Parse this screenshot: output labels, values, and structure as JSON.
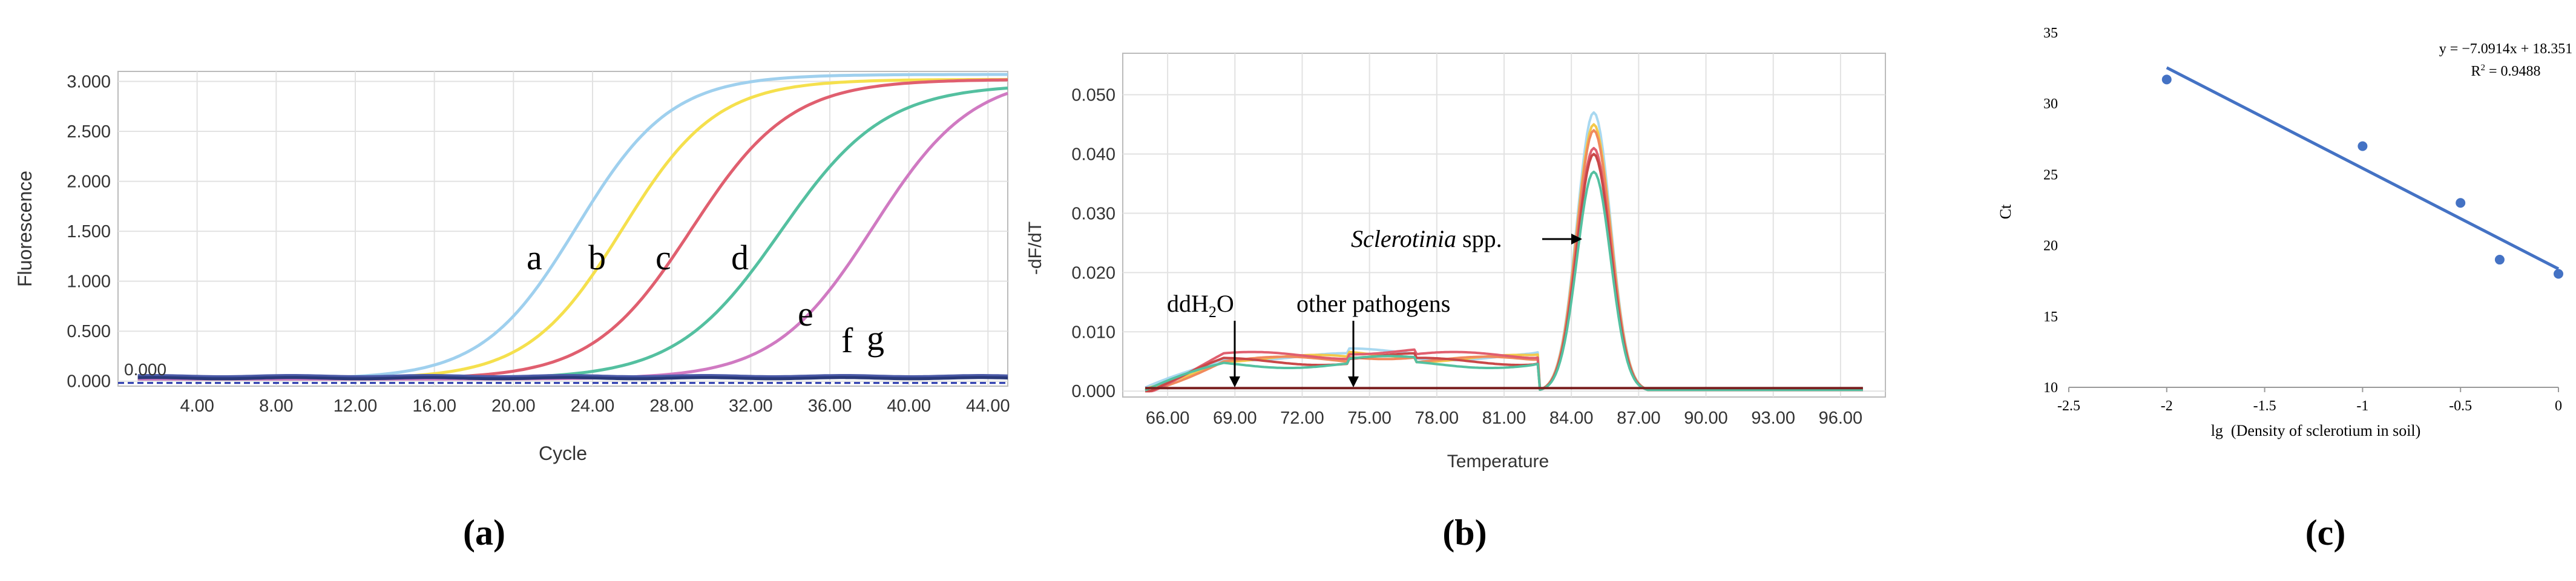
{
  "chart_data": [
    {
      "id": "a",
      "type": "line",
      "panel_label": "(a)",
      "xlabel": "Cycle",
      "ylabel": "Fluorescence",
      "xlim": [
        0,
        45
      ],
      "ylim": [
        -0.05,
        3.1
      ],
      "xticks": [
        4,
        8,
        12,
        16,
        20,
        24,
        28,
        32,
        36,
        40,
        44
      ],
      "xtick_labels": [
        "4.00",
        "8.00",
        "12.00",
        "16.00",
        "20.00",
        "24.00",
        "28.00",
        "32.00",
        "36.00",
        "40.00",
        "44.00"
      ],
      "yticks": [
        0,
        0.5,
        1,
        1.5,
        2,
        2.5,
        3
      ],
      "ytick_labels": [
        "0.000",
        "0.500",
        "1.000",
        "1.500",
        "2.000",
        "2.500",
        "3.000"
      ],
      "threshold_label": "0.000",
      "curve_labels": [
        "a",
        "b",
        "c",
        "d",
        "e",
        "f",
        "g"
      ],
      "series": [
        {
          "name": "a",
          "color": "#9fd0ee",
          "midpoint": 23.2,
          "slope": 0.42,
          "max": 3.05
        },
        {
          "name": "b",
          "color": "#f5e04d",
          "midpoint": 25.5,
          "slope": 0.42,
          "max": 3.0
        },
        {
          "name": "c",
          "color": "#e05f6f",
          "midpoint": 29.0,
          "slope": 0.4,
          "max": 3.0
        },
        {
          "name": "d",
          "color": "#54c0a0",
          "midpoint": 33.5,
          "slope": 0.38,
          "max": 2.95
        },
        {
          "name": "e",
          "color": "#d07ac2",
          "midpoint": 38.2,
          "slope": 0.4,
          "max": 3.05
        },
        {
          "name": "f",
          "color": "#4b5aa8",
          "flat": 0.05
        },
        {
          "name": "g",
          "color": "#2a3a7a",
          "flat": 0.03
        }
      ]
    },
    {
      "id": "b",
      "type": "line",
      "panel_label": "(b)",
      "xlabel": "Temperature",
      "ylabel": "-dF/dT",
      "xlim": [
        64,
        98
      ],
      "ylim": [
        -0.001,
        0.057
      ],
      "xticks": [
        66,
        69,
        72,
        75,
        78,
        81,
        84,
        87,
        90,
        93,
        96
      ],
      "xtick_labels": [
        "66.00",
        "69.00",
        "72.00",
        "75.00",
        "78.00",
        "81.00",
        "84.00",
        "87.00",
        "90.00",
        "93.00",
        "96.00"
      ],
      "yticks": [
        0,
        0.01,
        0.02,
        0.03,
        0.04,
        0.05
      ],
      "ytick_labels": [
        "0.000",
        "0.010",
        "0.020",
        "0.030",
        "0.040",
        "0.050"
      ],
      "annotations": {
        "pathogen_italic": "Sclerotinia",
        "pathogen_suffix": " spp.",
        "water_pre": "ddH",
        "water_sub": "2",
        "water_post": "O",
        "other": "other pathogens"
      },
      "peak_center": 85.0,
      "series": [
        {
          "name": "s1",
          "color": "#a8d8f0",
          "peak": 0.047,
          "base": 0.0058
        },
        {
          "name": "s2",
          "color": "#f3c84a",
          "peak": 0.045,
          "base": 0.0055
        },
        {
          "name": "s3",
          "color": "#f08a5d",
          "peak": 0.044,
          "base": 0.0052
        },
        {
          "name": "s4",
          "color": "#e05f6f",
          "peak": 0.041,
          "base": 0.006
        },
        {
          "name": "s5",
          "color": "#c94848",
          "peak": 0.04,
          "base": 0.005
        },
        {
          "name": "s6",
          "color": "#54c0a0",
          "peak": 0.037,
          "base": 0.0045
        },
        {
          "name": "ddH2O",
          "color": "#7a2020",
          "flat": 0.0005
        }
      ]
    },
    {
      "id": "c",
      "type": "scatter",
      "panel_label": "(c)",
      "xlabel": "lg  (Density of sclerotium in soil)",
      "ylabel": "Ct",
      "xlim": [
        -2.5,
        0
      ],
      "ylim": [
        10,
        35
      ],
      "xticks": [
        -2.5,
        -2,
        -1.5,
        -1,
        -0.5,
        0
      ],
      "xtick_labels": [
        "-2.5",
        "-2",
        "-1.5",
        "-1",
        "-0.5",
        "0"
      ],
      "yticks": [
        10,
        15,
        20,
        25,
        30,
        35
      ],
      "ytick_labels": [
        "10",
        "15",
        "20",
        "25",
        "30",
        "35"
      ],
      "points": [
        {
          "x": -2.0,
          "y": 31.7
        },
        {
          "x": -1.0,
          "y": 27.0
        },
        {
          "x": -0.5,
          "y": 23.0
        },
        {
          "x": -0.3,
          "y": 19.0
        },
        {
          "x": 0.0,
          "y": 18.0
        }
      ],
      "fit": {
        "slope": -7.0914,
        "intercept": 18.351,
        "x_from": -2.0,
        "x_to": 0.0
      },
      "equation": "y = −7.0914x + 18.351",
      "r2_label": "R",
      "r2_sup": "2",
      "r2_value": " = 0.9488",
      "color": "#4472c4"
    }
  ]
}
